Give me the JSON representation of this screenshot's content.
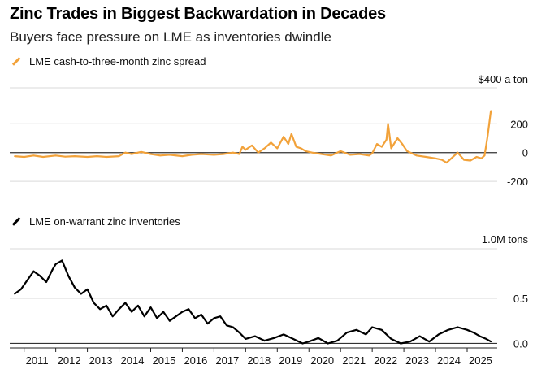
{
  "header": {
    "title": "Zinc Trades in Biggest Backwardation in Decades",
    "subtitle": "Buyers face pressure on LME as inventories dwindle"
  },
  "colors": {
    "spread": "#f2a23a",
    "inventory": "#000000",
    "grid": "#d9d9d9",
    "zero": "#333333"
  },
  "chart_data": [
    {
      "type": "line",
      "legend": "LME cash-to-three-month zinc spread",
      "unit_label": "$400 a ton",
      "yticks": [
        {
          "value": 200,
          "label": "200"
        },
        {
          "value": 0,
          "label": "0"
        },
        {
          "value": -200,
          "label": "-200"
        }
      ],
      "ylim": [
        -250,
        450
      ],
      "x": [
        2010.7,
        2011.0,
        2011.3,
        2011.6,
        2012.0,
        2012.3,
        2012.6,
        2013.0,
        2013.3,
        2013.6,
        2014.0,
        2014.2,
        2014.4,
        2014.7,
        2015.0,
        2015.3,
        2015.6,
        2016.0,
        2016.3,
        2016.6,
        2017.0,
        2017.3,
        2017.6,
        2017.8,
        2017.9,
        2018.0,
        2018.2,
        2018.4,
        2018.6,
        2018.8,
        2019.0,
        2019.2,
        2019.35,
        2019.45,
        2019.6,
        2019.75,
        2019.9,
        2020.1,
        2020.4,
        2020.7,
        2021.0,
        2021.3,
        2021.6,
        2021.9,
        2022.0,
        2022.15,
        2022.3,
        2022.45,
        2022.5,
        2022.6,
        2022.8,
        2022.95,
        2023.1,
        2023.4,
        2023.7,
        2024.0,
        2024.2,
        2024.35,
        2024.5,
        2024.7,
        2024.9,
        2025.1,
        2025.3,
        2025.45,
        2025.55,
        2025.6,
        2025.65,
        2025.75
      ],
      "values": [
        -25,
        -30,
        -20,
        -30,
        -20,
        -28,
        -25,
        -30,
        -25,
        -30,
        -25,
        0,
        -10,
        5,
        -10,
        -20,
        -15,
        -25,
        -15,
        -10,
        -15,
        -10,
        0,
        -10,
        40,
        20,
        50,
        0,
        30,
        70,
        30,
        110,
        60,
        130,
        40,
        30,
        10,
        0,
        -10,
        -20,
        10,
        -15,
        -10,
        -20,
        -5,
        60,
        40,
        90,
        200,
        30,
        100,
        60,
        10,
        -20,
        -30,
        -40,
        -50,
        -70,
        -40,
        0,
        -50,
        -55,
        -30,
        -40,
        -20,
        50,
        120,
        290
      ]
    },
    {
      "type": "line",
      "legend": "LME on-warrant zinc inventories",
      "unit_label": "1.0M tons",
      "yticks": [
        {
          "value": 0.5,
          "label": "0.5"
        },
        {
          "value": 0.0,
          "label": "0.0"
        }
      ],
      "ylim": [
        -0.05,
        1.05
      ],
      "x": [
        2010.7,
        2010.9,
        2011.1,
        2011.3,
        2011.5,
        2011.7,
        2011.9,
        2012.0,
        2012.2,
        2012.4,
        2012.6,
        2012.8,
        2013.0,
        2013.2,
        2013.4,
        2013.6,
        2013.8,
        2014.0,
        2014.2,
        2014.4,
        2014.6,
        2014.8,
        2015.0,
        2015.2,
        2015.4,
        2015.6,
        2015.8,
        2016.0,
        2016.2,
        2016.4,
        2016.6,
        2016.8,
        2017.0,
        2017.2,
        2017.4,
        2017.6,
        2017.8,
        2018.0,
        2018.3,
        2018.6,
        2018.9,
        2019.2,
        2019.5,
        2019.8,
        2020.0,
        2020.3,
        2020.6,
        2020.9,
        2021.2,
        2021.5,
        2021.8,
        2022.0,
        2022.3,
        2022.6,
        2022.9,
        2023.2,
        2023.5,
        2023.8,
        2024.1,
        2024.4,
        2024.7,
        2025.0,
        2025.2,
        2025.4,
        2025.6,
        2025.75
      ],
      "values": [
        0.55,
        0.6,
        0.7,
        0.8,
        0.75,
        0.68,
        0.82,
        0.88,
        0.92,
        0.75,
        0.62,
        0.55,
        0.6,
        0.45,
        0.38,
        0.42,
        0.3,
        0.38,
        0.45,
        0.35,
        0.42,
        0.3,
        0.4,
        0.28,
        0.35,
        0.25,
        0.3,
        0.35,
        0.38,
        0.28,
        0.32,
        0.22,
        0.28,
        0.3,
        0.2,
        0.18,
        0.12,
        0.05,
        0.08,
        0.03,
        0.06,
        0.1,
        0.05,
        0.0,
        0.02,
        0.06,
        0.0,
        0.03,
        0.12,
        0.15,
        0.1,
        0.18,
        0.15,
        0.05,
        0.0,
        0.02,
        0.08,
        0.02,
        0.1,
        0.15,
        0.18,
        0.15,
        0.12,
        0.08,
        0.05,
        0.02
      ]
    }
  ],
  "xaxis": {
    "labels": [
      "2011",
      "2012",
      "2013",
      "2014",
      "2015",
      "2016",
      "2017",
      "2018",
      "2019",
      "2020",
      "2021",
      "2022",
      "2023",
      "2024",
      "2025"
    ]
  }
}
